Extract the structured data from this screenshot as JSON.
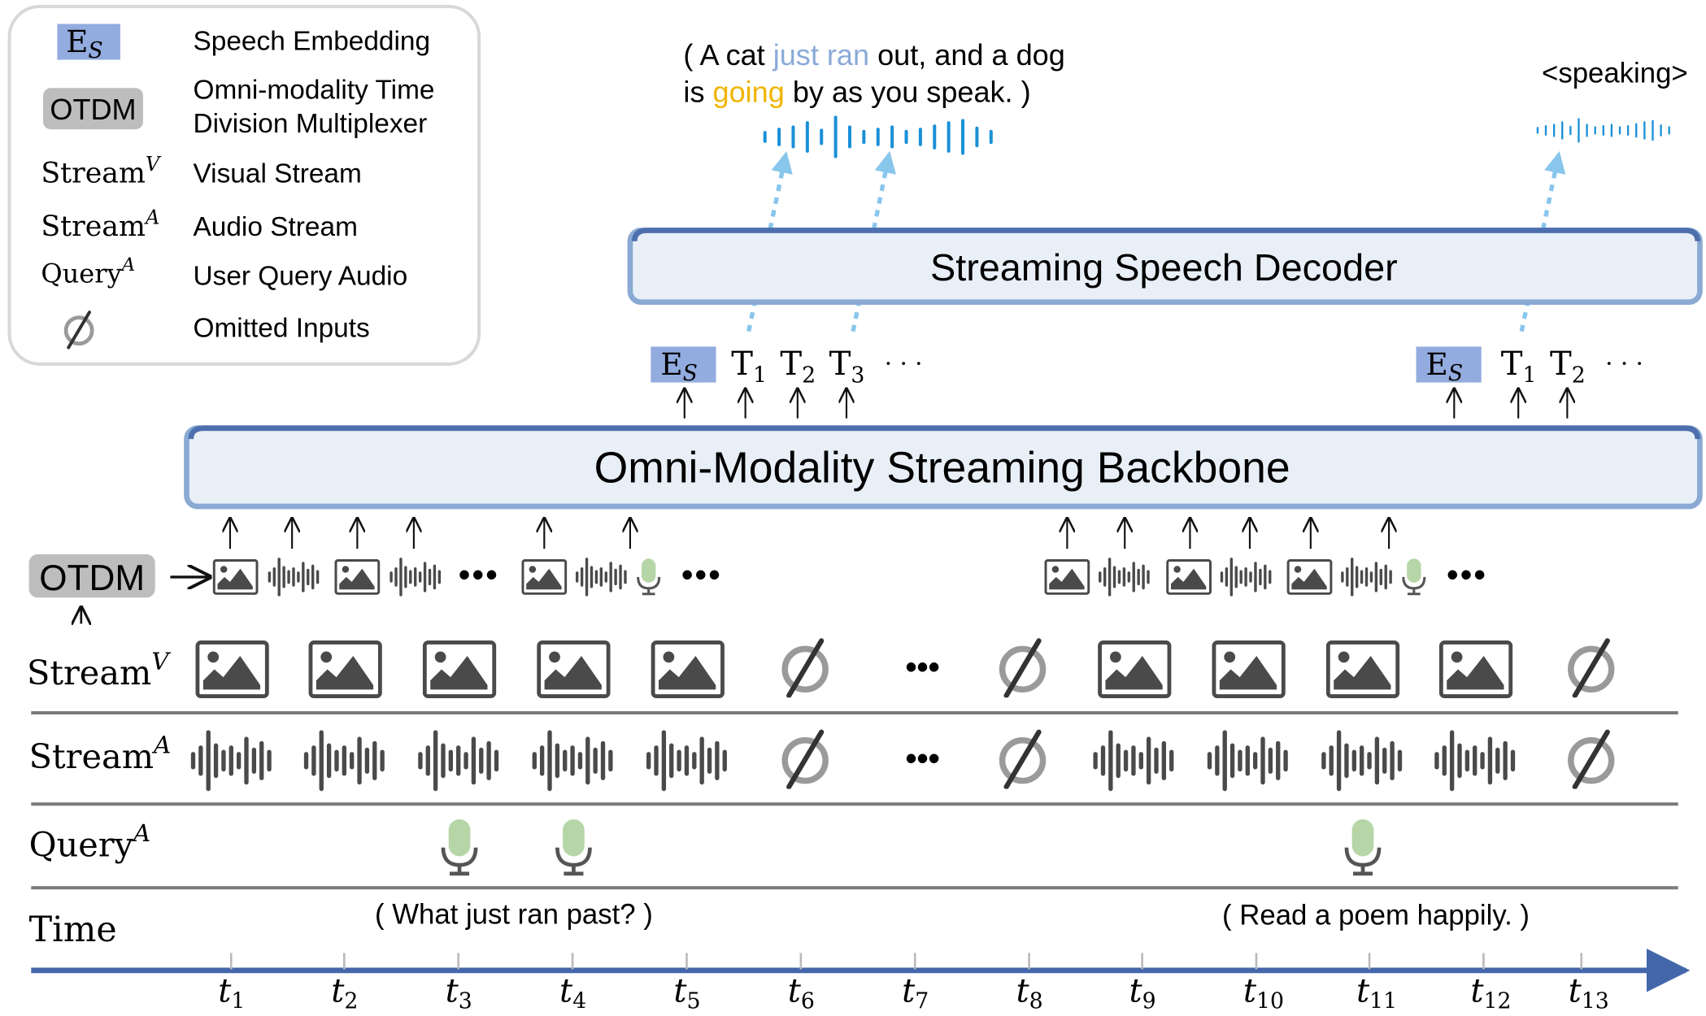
{
  "colors": {
    "embedding_fill": "#93acdf",
    "otdm_fill": "#bdbdbd",
    "box_fill": "#e8eff7",
    "box_stroke_top": "#4d6fad",
    "box_stroke_bottom": "#8aaad4",
    "output_wave": "#1a90d8",
    "dashed_arrow": "#88c6ec",
    "mic_green": "#b6d6a8",
    "icon_gray": "#4a4a4a",
    "null_gray": "#9a9a9a",
    "timeline": "#4466aa",
    "highlight_blue": "#8aaad8",
    "highlight_yellow": "#f0b400"
  },
  "legend": {
    "items": [
      {
        "symbol": "E",
        "symbol_sub": "S",
        "label": "Speech Embedding"
      },
      {
        "symbol": "OTDM",
        "label_line1": "Omni-modality Time",
        "label_line2": "Division Multiplexer"
      },
      {
        "symbol": "Stream",
        "symbol_sup": "V",
        "label": "Visual Stream"
      },
      {
        "symbol": "Stream",
        "symbol_sup": "A",
        "label": "Audio Stream"
      },
      {
        "symbol": "Query",
        "symbol_sup": "A",
        "label": "User Query Audio"
      },
      {
        "symbol": "null-icon",
        "label": "Omitted Inputs"
      }
    ]
  },
  "output_text": {
    "line1": [
      "( A cat ",
      "just ran",
      " out, and a dog"
    ],
    "line2": [
      "is ",
      "going",
      " by as you speak. )"
    ],
    "speaking": "<speaking>"
  },
  "decoder": {
    "label": "Streaming Speech Decoder"
  },
  "backbone": {
    "label": "Omni-Modality Streaming Backbone"
  },
  "tokens": {
    "group1": {
      "embedding": "E",
      "embedding_sub": "S",
      "tokens": [
        [
          "T",
          "1"
        ],
        [
          "T",
          "2"
        ],
        [
          "T",
          "3"
        ]
      ],
      "ellipsis": "· · ·"
    },
    "group2": {
      "embedding": "E",
      "embedding_sub": "S",
      "tokens": [
        [
          "T",
          "1"
        ],
        [
          "T",
          "2"
        ]
      ],
      "ellipsis": "· · ·"
    }
  },
  "otdm": {
    "label": "OTDM",
    "sequence_left": [
      "image",
      "wave",
      "image",
      "wave",
      "ellipsis",
      "image",
      "wave",
      "mic",
      "ellipsis"
    ],
    "sequence_right": [
      "image",
      "wave",
      "image",
      "wave",
      "image",
      "wave",
      "mic",
      "ellipsis"
    ]
  },
  "rows": {
    "stream_v": {
      "label": "Stream",
      "sup": "V",
      "items": [
        "image",
        "image",
        "image",
        "image",
        "image",
        "null",
        "ellipsis",
        "null",
        "image",
        "image",
        "image",
        "image",
        "null"
      ]
    },
    "stream_a": {
      "label": "Stream",
      "sup": "A",
      "items": [
        "wave",
        "wave",
        "wave",
        "wave",
        "wave",
        "null",
        "ellipsis",
        "null",
        "wave",
        "wave",
        "wave",
        "wave",
        "null"
      ]
    },
    "query_a": {
      "label": "Query",
      "sup": "A",
      "items": [
        "",
        "",
        "mic",
        "mic",
        "",
        "",
        "",
        "",
        "",
        "",
        "mic",
        "",
        ""
      ]
    },
    "time": {
      "label": "Time"
    }
  },
  "queries": {
    "q1": "( What just ran past? )",
    "q2": "( Read a poem happily. )"
  },
  "timeline": {
    "symbol": "t",
    "ticks": [
      "1",
      "2",
      "3",
      "4",
      "5",
      "6",
      "7",
      "8",
      "9",
      "10",
      "11",
      "12",
      "13"
    ]
  }
}
